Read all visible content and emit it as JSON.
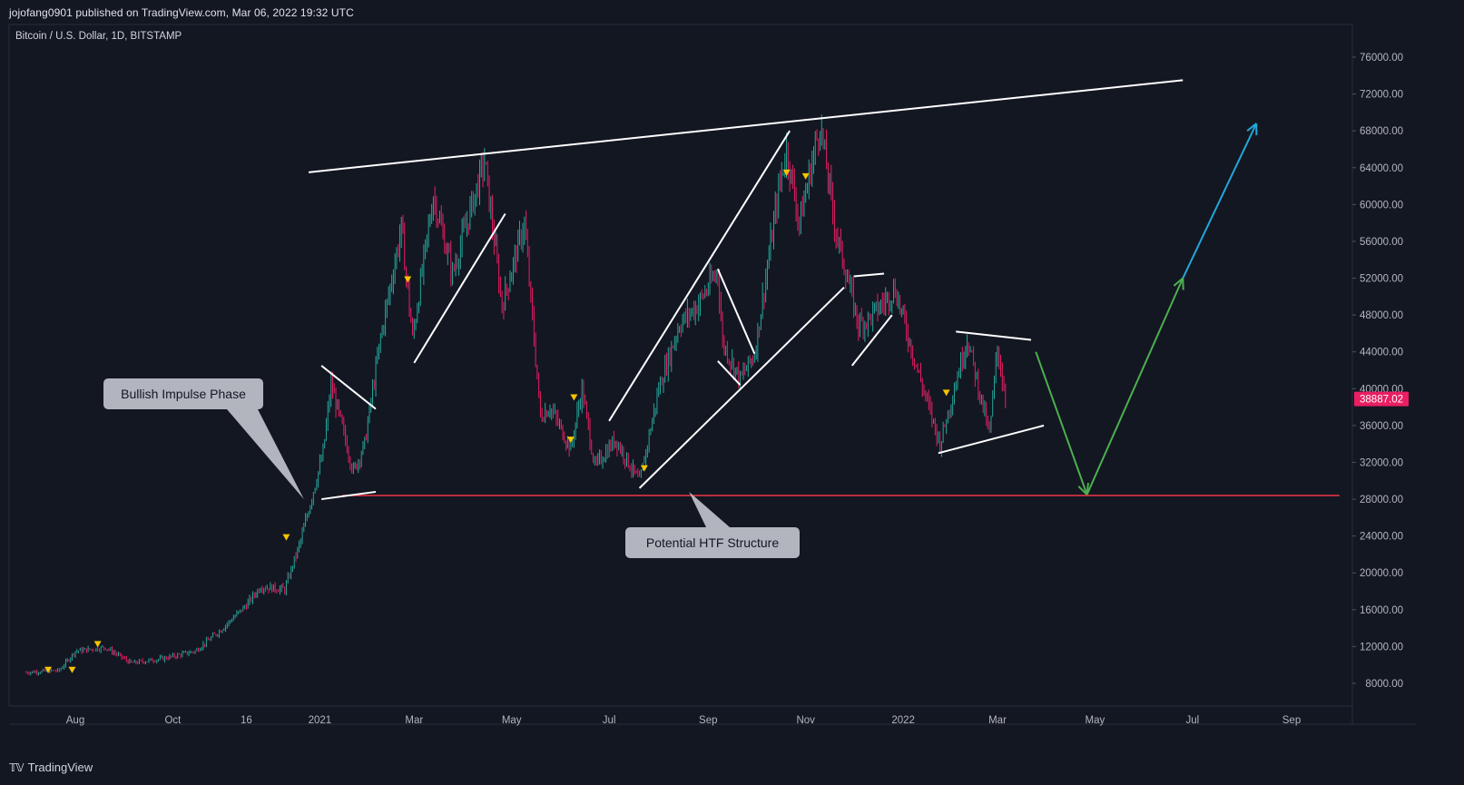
{
  "header": {
    "publisher": "jojofang0901 published on TradingView.com, Mar 06, 2022 19:32 UTC",
    "symbol": "Bitcoin / U.S. Dollar, 1D, BITSTAMP"
  },
  "footer": {
    "brand": "TradingView"
  },
  "colors": {
    "background": "#131722",
    "bull": "#26a69a",
    "bear": "#e91e63",
    "support": "#f23645",
    "projection_down": "#4caf50",
    "projection_up": "#22a7d9",
    "marker": "#f5c400",
    "price_badge": "#e91e63"
  },
  "chart_data": {
    "type": "candlestick",
    "title": "Bitcoin / U.S. Dollar, 1D, BITSTAMP",
    "x_ticks": [
      "Aug",
      "Oct",
      "16",
      "2021",
      "Mar",
      "May",
      "Jul",
      "Sep",
      "Nov",
      "2022",
      "Mar",
      "May",
      "Jul",
      "Sep"
    ],
    "x_tick_dates": [
      "2020-08-01",
      "2020-10-01",
      "2020-11-16",
      "2021-01-01",
      "2021-03-01",
      "2021-05-01",
      "2021-07-01",
      "2021-09-01",
      "2021-11-01",
      "2022-01-01",
      "2022-03-01",
      "2022-05-01",
      "2022-07-01",
      "2022-09-01"
    ],
    "y_ticks": [
      "76000.00",
      "72000.00",
      "68000.00",
      "64000.00",
      "60000.00",
      "56000.00",
      "52000.00",
      "48000.00",
      "44000.00",
      "40000.00",
      "36000.00",
      "32000.00",
      "28000.00",
      "24000.00",
      "20000.00",
      "16000.00",
      "12000.00",
      "8000.00"
    ],
    "ylim": [
      4000,
      78000
    ],
    "last_price": "38887.02",
    "price_path": [
      [
        "2020-07-01",
        9200
      ],
      [
        "2020-07-22",
        9400
      ],
      [
        "2020-08-01",
        11500
      ],
      [
        "2020-08-20",
        11900
      ],
      [
        "2020-09-05",
        10200
      ],
      [
        "2020-09-25",
        10700
      ],
      [
        "2020-10-15",
        11500
      ],
      [
        "2020-10-31",
        13800
      ],
      [
        "2020-11-16",
        16500
      ],
      [
        "2020-11-25",
        18500
      ],
      [
        "2020-12-10",
        18200
      ],
      [
        "2020-12-20",
        23500
      ],
      [
        "2021-01-03",
        33000
      ],
      [
        "2021-01-08",
        40500
      ],
      [
        "2021-01-22",
        31000
      ],
      [
        "2021-01-29",
        34000
      ],
      [
        "2021-02-08",
        45500
      ],
      [
        "2021-02-21",
        57500
      ],
      [
        "2021-02-28",
        45500
      ],
      [
        "2021-03-13",
        61000
      ],
      [
        "2021-03-25",
        52500
      ],
      [
        "2021-04-14",
        64800
      ],
      [
        "2021-04-25",
        49000
      ],
      [
        "2021-05-09",
        58000
      ],
      [
        "2021-05-19",
        37000
      ],
      [
        "2021-05-25",
        38000
      ],
      [
        "2021-06-07",
        33500
      ],
      [
        "2021-06-14",
        40000
      ],
      [
        "2021-06-22",
        31500
      ],
      [
        "2021-07-05",
        34500
      ],
      [
        "2021-07-20",
        29800
      ],
      [
        "2021-08-01",
        40000
      ],
      [
        "2021-08-14",
        47000
      ],
      [
        "2021-08-25",
        49000
      ],
      [
        "2021-09-07",
        52800
      ],
      [
        "2021-09-10",
        45000
      ],
      [
        "2021-09-21",
        41000
      ],
      [
        "2021-09-30",
        43800
      ],
      [
        "2021-10-15",
        61500
      ],
      [
        "2021-10-20",
        66000
      ],
      [
        "2021-10-28",
        58000
      ],
      [
        "2021-11-10",
        68800
      ],
      [
        "2021-11-20",
        57000
      ],
      [
        "2021-12-04",
        47000
      ],
      [
        "2021-12-10",
        47500
      ],
      [
        "2021-12-27",
        50800
      ],
      [
        "2022-01-10",
        42000
      ],
      [
        "2022-01-24",
        34000
      ],
      [
        "2022-02-10",
        45500
      ],
      [
        "2022-02-24",
        35000
      ],
      [
        "2022-03-01",
        44500
      ],
      [
        "2022-03-06",
        38887
      ]
    ],
    "drawings": [
      {
        "label": "resistance trendline",
        "from": [
          "2020-12-25",
          63500
        ],
        "to": [
          "2022-06-25",
          73500
        ],
        "color": "#ffffff"
      },
      {
        "label": "support level",
        "from": [
          "2021-01-15",
          28400
        ],
        "to": [
          "2022-10-01",
          28400
        ],
        "color": "#f23645"
      },
      {
        "label": "descending channel top",
        "from": [
          "2021-01-02",
          42500
        ],
        "to": [
          "2021-02-05",
          37800
        ],
        "color": "#ffffff"
      },
      {
        "label": "descending channel bottom",
        "from": [
          "2021-01-02",
          28000
        ],
        "to": [
          "2021-02-05",
          28800
        ],
        "color": "#ffffff"
      },
      {
        "label": "rising wedge",
        "from": [
          "2021-03-01",
          42800
        ],
        "to": [
          "2021-04-27",
          59000
        ],
        "color": "#ffffff"
      },
      {
        "label": "channel top",
        "from": [
          "2021-07-01",
          36500
        ],
        "to": [
          "2021-10-22",
          68000
        ],
        "color": "#ffffff"
      },
      {
        "label": "channel bottom",
        "from": [
          "2021-07-20",
          29200
        ],
        "to": [
          "2021-11-25",
          51000
        ],
        "color": "#ffffff"
      },
      {
        "label": "flag top",
        "from": [
          "2021-09-07",
          53000
        ],
        "to": [
          "2021-09-30",
          43800
        ],
        "color": "#ffffff"
      },
      {
        "label": "flag bottom",
        "from": [
          "2021-09-07",
          43000
        ],
        "to": [
          "2021-09-21",
          40400
        ],
        "color": "#ffffff"
      },
      {
        "label": "bear flag top",
        "from": [
          "2021-12-01",
          52200
        ],
        "to": [
          "2021-12-20",
          52500
        ],
        "color": "#ffffff"
      },
      {
        "label": "bear flag bottom",
        "from": [
          "2021-11-30",
          42500
        ],
        "to": [
          "2021-12-25",
          48000
        ],
        "color": "#ffffff"
      },
      {
        "label": "triangle top",
        "from": [
          "2022-02-03",
          46200
        ],
        "to": [
          "2022-03-22",
          45300
        ],
        "color": "#ffffff"
      },
      {
        "label": "triangle bottom",
        "from": [
          "2022-01-23",
          33000
        ],
        "to": [
          "2022-03-30",
          36000
        ],
        "color": "#ffffff"
      }
    ],
    "projection": [
      {
        "from": [
          "2022-03-25",
          44000
        ],
        "to": [
          "2022-04-26",
          28500
        ],
        "color": "#4caf50"
      },
      {
        "from": [
          "2022-04-26",
          28500
        ],
        "to": [
          "2022-06-25",
          52000
        ],
        "color": "#4caf50"
      },
      {
        "from": [
          "2022-06-25",
          52000
        ],
        "to": [
          "2022-08-10",
          68800
        ],
        "color": "#22a7d9"
      }
    ],
    "markers": [
      [
        "2020-07-15",
        9400
      ],
      [
        "2020-07-30",
        9400
      ],
      [
        "2020-08-15",
        12200
      ],
      [
        "2020-12-11",
        23800
      ],
      [
        "2021-02-25",
        51800
      ],
      [
        "2021-06-09",
        39000
      ],
      [
        "2021-06-07",
        34400
      ],
      [
        "2021-07-23",
        31300
      ],
      [
        "2021-10-20",
        63400
      ],
      [
        "2021-11-01",
        63000
      ],
      [
        "2022-01-28",
        39500
      ]
    ],
    "annotations": [
      {
        "text": "Bullish Impulse Phase",
        "pointer_to": [
          "2020-12-22",
          28000
        ]
      },
      {
        "text": "Potential HTF Structure",
        "pointer_to": [
          "2021-08-20",
          28800
        ]
      }
    ]
  }
}
